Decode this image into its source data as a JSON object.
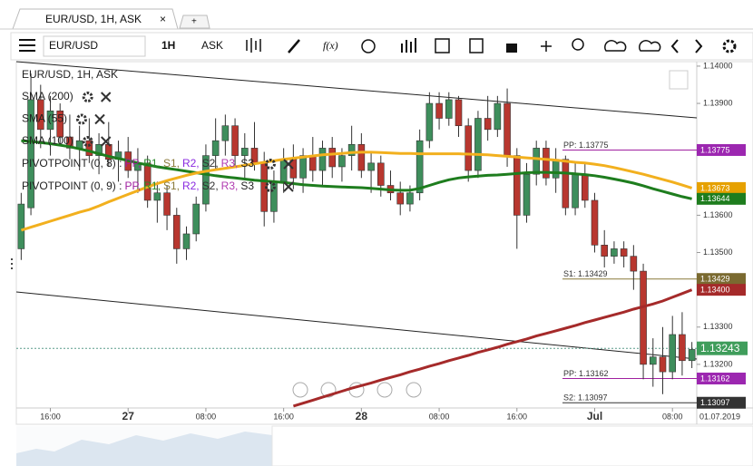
{
  "tab": {
    "title": "EUR/USD, 1H, ASK",
    "close": "×",
    "new_tab": "+"
  },
  "toolbar": {
    "symbol": "EUR/USD",
    "timeframe": "1H",
    "price_type": "ASK",
    "fx": "f(x)"
  },
  "chart_data": {
    "type": "candlestick",
    "title": "EUR/USD, 1H, ASK",
    "date_label": "01.07.2019",
    "categories": [
      null,
      null,
      null,
      "16:00",
      null,
      null,
      null,
      null,
      null,
      null,
      null,
      "27",
      null,
      null,
      null,
      null,
      null,
      null,
      null,
      "08:00",
      null,
      null,
      null,
      null,
      null,
      null,
      null,
      "16:00",
      null,
      null,
      null,
      null,
      null,
      null,
      null,
      "28",
      null,
      null,
      null,
      null,
      null,
      null,
      null,
      "08:00",
      null,
      null,
      null,
      null,
      null,
      null,
      null,
      "16:00",
      null,
      null,
      null,
      null,
      null,
      null,
      null,
      "Jul",
      null,
      null,
      null,
      null,
      null,
      null,
      null,
      "08:00",
      null,
      null
    ],
    "up_color": "#3e8e5c",
    "down_color": "#b8372f",
    "open": [
      1.1351,
      1.1362,
      1.1391,
      1.1383,
      1.1388,
      1.1381,
      1.1378,
      1.138,
      1.1376,
      1.1379,
      1.1375,
      1.1377,
      1.1372,
      1.1374,
      1.1364,
      1.1366,
      1.136,
      1.1351,
      1.1355,
      1.1363,
      1.1376,
      1.138,
      1.1384,
      1.1376,
      1.1378,
      1.1374,
      1.1361,
      1.1369,
      1.1375,
      1.137,
      1.1376,
      1.1372,
      1.1378,
      1.1373,
      1.1376,
      1.1379,
      1.1372,
      1.1374,
      1.1368,
      1.1366,
      1.1363,
      1.1366,
      1.138,
      1.139,
      1.1386,
      1.1391,
      1.1384,
      1.1372,
      1.1386,
      1.1383,
      1.139,
      1.1376,
      1.136,
      1.1371,
      1.1378,
      1.137,
      1.1375,
      1.1362,
      1.1371,
      1.1364,
      1.1352,
      1.1349,
      1.1351,
      1.1349,
      1.1345,
      1.132,
      1.1322,
      1.1318,
      1.1328,
      1.1321
    ],
    "high": [
      1.1366,
      1.1398,
      1.1395,
      1.1392,
      1.139,
      1.1387,
      1.1384,
      1.1386,
      1.1382,
      1.1385,
      1.138,
      1.1381,
      1.1378,
      1.1376,
      1.1369,
      1.1368,
      1.1362,
      1.1357,
      1.1365,
      1.1379,
      1.1386,
      1.1387,
      1.1386,
      1.1382,
      1.1385,
      1.1377,
      1.1372,
      1.1378,
      1.1379,
      1.1378,
      1.1381,
      1.138,
      1.1381,
      1.1378,
      1.1384,
      1.1382,
      1.1377,
      1.1376,
      1.1372,
      1.1369,
      1.1368,
      1.1383,
      1.1393,
      1.1393,
      1.1393,
      1.1392,
      1.1386,
      1.1388,
      1.1392,
      1.1392,
      1.1394,
      1.1378,
      1.1374,
      1.138,
      1.138,
      1.1378,
      1.1376,
      1.1374,
      1.1374,
      1.1366,
      1.1356,
      1.1353,
      1.1353,
      1.1352,
      1.1347,
      1.1327,
      1.133,
      1.1333,
      1.1334,
      1.1326
    ],
    "low": [
      1.1348,
      1.136,
      1.1378,
      1.1376,
      1.1379,
      1.1375,
      1.1372,
      1.1374,
      1.1371,
      1.1373,
      1.1369,
      1.137,
      1.1366,
      1.1362,
      1.1358,
      1.1356,
      1.1347,
      1.1348,
      1.1353,
      1.1361,
      1.1372,
      1.1376,
      1.1373,
      1.137,
      1.1372,
      1.1357,
      1.1358,
      1.1366,
      1.1367,
      1.1366,
      1.1369,
      1.1368,
      1.137,
      1.1369,
      1.1372,
      1.137,
      1.1366,
      1.1365,
      1.1364,
      1.136,
      1.1361,
      1.1364,
      1.1378,
      1.1383,
      1.1384,
      1.1381,
      1.1369,
      1.137,
      1.138,
      1.1381,
      1.1373,
      1.1351,
      1.1358,
      1.1368,
      1.1368,
      1.1366,
      1.136,
      1.136,
      1.1362,
      1.135,
      1.1346,
      1.1347,
      1.1346,
      1.134,
      1.1316,
      1.1314,
      1.1312,
      1.1316,
      1.1317,
      1.1319
    ],
    "close": [
      1.1363,
      1.1391,
      1.1383,
      1.1388,
      1.1381,
      1.1378,
      1.138,
      1.1376,
      1.1379,
      1.1375,
      1.1377,
      1.1372,
      1.1374,
      1.1364,
      1.1366,
      1.136,
      1.1351,
      1.1355,
      1.1363,
      1.1376,
      1.138,
      1.1384,
      1.1376,
      1.1378,
      1.1374,
      1.1361,
      1.1369,
      1.1375,
      1.137,
      1.1376,
      1.1372,
      1.1378,
      1.1373,
      1.1376,
      1.1379,
      1.1372,
      1.1374,
      1.1368,
      1.1366,
      1.1363,
      1.1366,
      1.138,
      1.139,
      1.1386,
      1.1391,
      1.1384,
      1.1372,
      1.1386,
      1.1383,
      1.139,
      1.1376,
      1.136,
      1.1371,
      1.1378,
      1.137,
      1.1375,
      1.1362,
      1.1371,
      1.1364,
      1.1352,
      1.1349,
      1.1351,
      1.1349,
      1.1345,
      1.132,
      1.1322,
      1.1318,
      1.1328,
      1.1321,
      1.1324
    ],
    "series": [
      {
        "name": "SMA (200)",
        "color": "#a52a2a",
        "values": [
          null,
          null,
          null,
          null,
          null,
          null,
          null,
          null,
          null,
          null,
          null,
          null,
          null,
          null,
          null,
          null,
          null,
          null,
          null,
          null,
          null,
          null,
          null,
          null,
          null,
          null,
          null,
          null,
          1.13088,
          1.13096,
          1.13104,
          1.13112,
          1.1312,
          1.13128,
          1.13136,
          1.13143,
          1.1315,
          1.13158,
          1.13165,
          1.13172,
          1.1318,
          1.13187,
          1.13195,
          1.13202,
          1.1321,
          1.13217,
          1.13224,
          1.13232,
          1.13239,
          1.13246,
          1.13254,
          1.13261,
          1.13268,
          1.13276,
          1.13283,
          1.1329,
          1.13297,
          1.13304,
          1.13312,
          1.13319,
          1.13326,
          1.13333,
          1.1334,
          1.13348,
          1.13355,
          1.13362,
          1.1337,
          1.1338,
          1.1339,
          1.134
        ]
      },
      {
        "name": "SMA (55)",
        "color": "#1e7d1e",
        "values": [
          1.138,
          1.13798,
          1.13795,
          1.13792,
          1.13788,
          1.13784,
          1.13778,
          1.13772,
          1.13765,
          1.13758,
          1.13752,
          1.13747,
          1.1374,
          1.13735,
          1.1373,
          1.13726,
          1.13722,
          1.13718,
          1.13714,
          1.1371,
          1.13706,
          1.13703,
          1.137,
          1.13697,
          1.13694,
          1.13692,
          1.1369,
          1.13688,
          1.13685,
          1.13682,
          1.1368,
          1.13678,
          1.13677,
          1.13676,
          1.13675,
          1.13674,
          1.13672,
          1.1367,
          1.13668,
          1.13667,
          1.13667,
          1.13672,
          1.1368,
          1.13688,
          1.13695,
          1.137,
          1.13703,
          1.13705,
          1.13707,
          1.13708,
          1.1371,
          1.13712,
          1.13714,
          1.13715,
          1.13715,
          1.13714,
          1.13713,
          1.13711,
          1.13709,
          1.13706,
          1.13702,
          1.13697,
          1.13692,
          1.13686,
          1.13679,
          1.13671,
          1.13664,
          1.13657,
          1.1365,
          1.13644
        ]
      },
      {
        "name": "SMA (100)",
        "color": "#f2b01e",
        "values": [
          1.1356,
          1.13568,
          1.13576,
          1.13584,
          1.13592,
          1.136,
          1.13608,
          1.13615,
          1.13625,
          1.13636,
          1.13646,
          1.13656,
          1.13666,
          1.13676,
          1.13685,
          1.13693,
          1.137,
          1.13707,
          1.13713,
          1.13718,
          1.13722,
          1.13726,
          1.1373,
          1.13734,
          1.13738,
          1.13742,
          1.13746,
          1.1375,
          1.13753,
          1.13756,
          1.13759,
          1.13762,
          1.13764,
          1.13766,
          1.13768,
          1.13769,
          1.13769,
          1.13768,
          1.13767,
          1.13766,
          1.13766,
          1.13765,
          1.13765,
          1.13765,
          1.13765,
          1.13765,
          1.13764,
          1.13763,
          1.13762,
          1.1376,
          1.13758,
          1.13756,
          1.13754,
          1.13752,
          1.1375,
          1.13748,
          1.13745,
          1.13742,
          1.1374,
          1.13737,
          1.13733,
          1.13728,
          1.13722,
          1.13716,
          1.1371,
          1.13703,
          1.13696,
          1.13689,
          1.13681,
          1.13673
        ]
      }
    ],
    "pivot_studies": [
      {
        "name": "PIVOTPOINT (0, 8) :"
      },
      {
        "name": "PIVOTPOINT (0, 9) :"
      }
    ],
    "pivot_items": [
      {
        "label": "PP,",
        "color": "#a020a0"
      },
      {
        "label": "R1,",
        "color": "#2a8a2a"
      },
      {
        "label": "S1,",
        "color": "#8a7a3a"
      },
      {
        "label": "R2,",
        "color": "#8a2ae0"
      },
      {
        "label": "S2,",
        "color": "#333333"
      },
      {
        "label": "R3,",
        "color": "#b03ab0"
      },
      {
        "label": "S3",
        "color": "#222222"
      }
    ],
    "pivots": [
      {
        "label": "PP: 1.13775",
        "value": 1.13775,
        "color": "#a020a0"
      },
      {
        "label": "S1: 1.13429",
        "value": 1.13429,
        "color": "#8a7a3a"
      },
      {
        "label": "PP: 1.13162",
        "value": 1.13162,
        "color": "#a020a0"
      },
      {
        "label": "S2: 1.13097",
        "value": 1.13097,
        "color": "#333333"
      }
    ],
    "price_badges": [
      {
        "value": 1.13775,
        "color": "#9c27b0"
      },
      {
        "value": 1.13673,
        "color": "#e6a100"
      },
      {
        "value": 1.13644,
        "color": "#1e7d1e"
      },
      {
        "value": 1.13429,
        "color": "#7a6a30"
      },
      {
        "value": {
          "value": 1.134,
          "label": "1.13400"
        },
        "color": "#a52a2a"
      },
      {
        "value": 1.13162,
        "color": "#9c27b0"
      },
      {
        "value": 1.13097,
        "color": "#333333"
      }
    ],
    "last_price": {
      "value": 1.13243,
      "color": "#3f9d5b"
    },
    "ylim": [
      1.13083,
      1.14012
    ],
    "yticks": [
      {
        "value": 1.14,
        "label": "1.14000"
      },
      {
        "value": 1.139,
        "label": "1.13900"
      },
      {
        "value": 1.136,
        "label": "1.13600"
      },
      {
        "value": 1.135,
        "label": "1.13500"
      },
      {
        "value": 1.133,
        "label": "1.13300"
      },
      {
        "value": 1.132,
        "label": "1.13200"
      }
    ]
  }
}
